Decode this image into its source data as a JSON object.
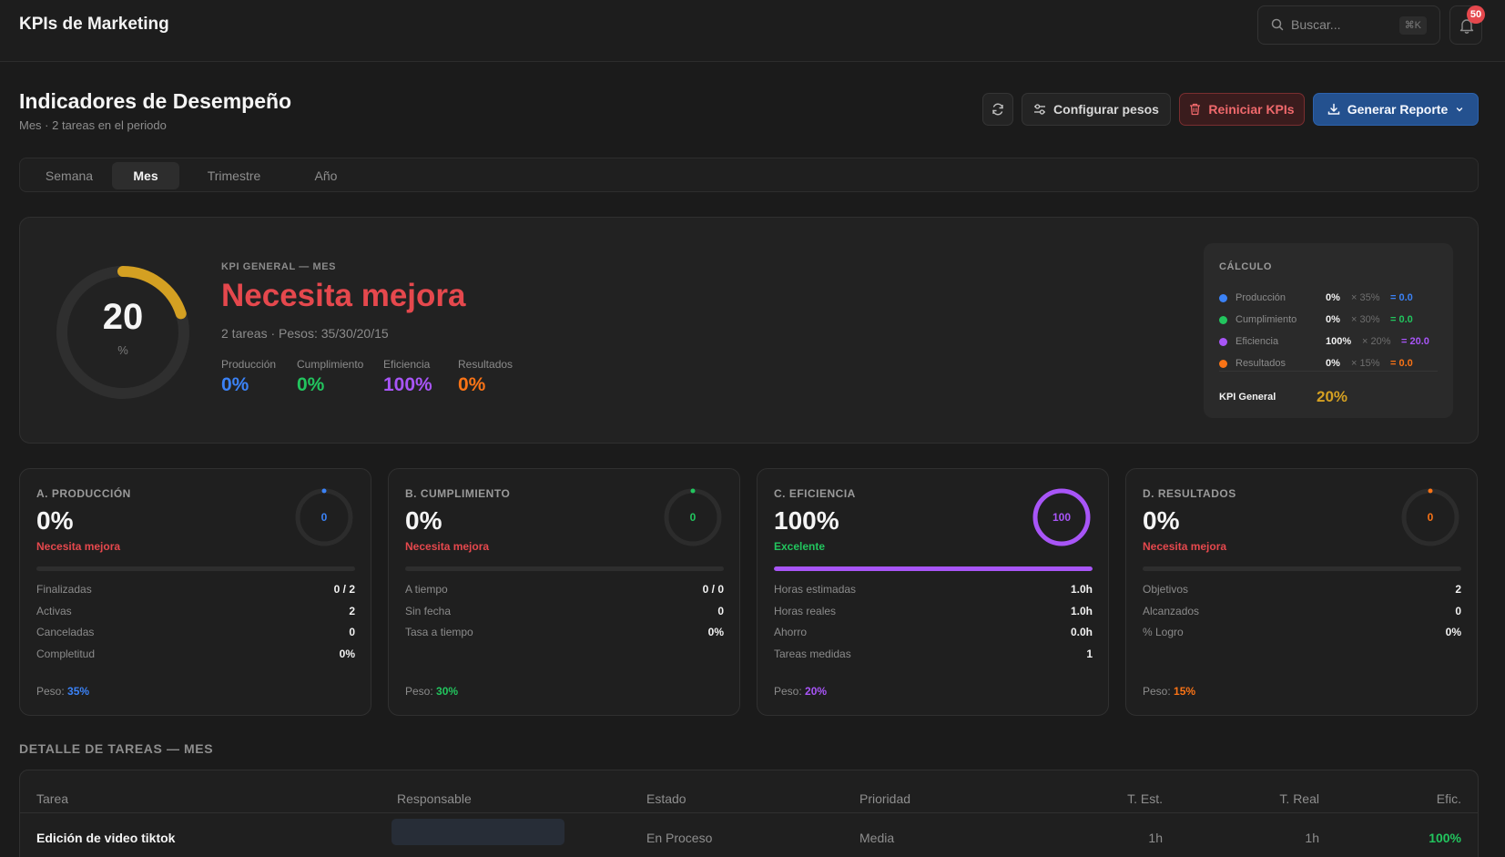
{
  "app": {
    "title": "KPIs de Marketing"
  },
  "search": {
    "placeholder": "Buscar...",
    "shortcut": "⌘K"
  },
  "notifications": {
    "count": "50"
  },
  "header": {
    "title": "Indicadores de Desempeño",
    "subtitle": "Mes · 2 tareas en el periodo",
    "config_label": "Configurar pesos",
    "reset_label": "Reiniciar KPIs",
    "report_label": "Generar Reporte"
  },
  "tabs": [
    {
      "label": "Semana",
      "active": false
    },
    {
      "label": "Mes",
      "active": true
    },
    {
      "label": "Trimestre",
      "active": false
    },
    {
      "label": "Año",
      "active": false
    }
  ],
  "kpi_general": {
    "value": "20",
    "unit": "%",
    "progress": 0.2,
    "label": "KPI GENERAL — MES",
    "status": "Necesita mejora",
    "meta": "2 tareas · Pesos: 35/30/20/15",
    "colors": {
      "gauge": "#d4a022",
      "status": "#e5484d"
    },
    "metrics": [
      {
        "label": "Producción",
        "value": "0%",
        "color": "#3b82f6"
      },
      {
        "label": "Cumplimiento",
        "value": "0%",
        "color": "#22c55e"
      },
      {
        "label": "Eficiencia",
        "value": "100%",
        "color": "#a855f7"
      },
      {
        "label": "Resultados",
        "value": "0%",
        "color": "#f97316"
      }
    ]
  },
  "calculo": {
    "title": "CÁLCULO",
    "rows": [
      {
        "label": "Producción",
        "value": "0%",
        "weight": "× 35%",
        "result": "= 0.0",
        "color": "#3b82f6"
      },
      {
        "label": "Cumplimiento",
        "value": "0%",
        "weight": "× 30%",
        "result": "= 0.0",
        "color": "#22c55e"
      },
      {
        "label": "Eficiencia",
        "value": "100%",
        "weight": "× 20%",
        "result": "= 20.0",
        "color": "#a855f7"
      },
      {
        "label": "Resultados",
        "value": "0%",
        "weight": "× 15%",
        "result": "= 0.0",
        "color": "#f97316"
      }
    ],
    "total_label": "KPI General",
    "total_value": "20%"
  },
  "cards": [
    {
      "title": "A. PRODUCCIÓN",
      "value": "0%",
      "status": "Necesita mejora",
      "status_color": "#e5484d",
      "ring_value": "0",
      "progress": 0,
      "color": "#3b82f6",
      "rows": [
        {
          "label": "Finalizadas",
          "value": "0 / 2"
        },
        {
          "label": "Activas",
          "value": "2"
        },
        {
          "label": "Canceladas",
          "value": "0"
        },
        {
          "label": "Completitud",
          "value": "0%"
        }
      ],
      "peso_label": "Peso:",
      "peso_value": "35%"
    },
    {
      "title": "B. CUMPLIMIENTO",
      "value": "0%",
      "status": "Necesita mejora",
      "status_color": "#e5484d",
      "ring_value": "0",
      "progress": 0,
      "color": "#22c55e",
      "rows": [
        {
          "label": "A tiempo",
          "value": "0 / 0"
        },
        {
          "label": "Sin fecha",
          "value": "0"
        },
        {
          "label": "Tasa a tiempo",
          "value": "0%"
        }
      ],
      "peso_label": "Peso:",
      "peso_value": "30%"
    },
    {
      "title": "C. EFICIENCIA",
      "value": "100%",
      "status": "Excelente",
      "status_color": "#22c55e",
      "ring_value": "100",
      "progress": 1,
      "color": "#a855f7",
      "rows": [
        {
          "label": "Horas estimadas",
          "value": "1.0h"
        },
        {
          "label": "Horas reales",
          "value": "1.0h"
        },
        {
          "label": "Ahorro",
          "value": "0.0h"
        },
        {
          "label": "Tareas medidas",
          "value": "1"
        }
      ],
      "peso_label": "Peso:",
      "peso_value": "20%"
    },
    {
      "title": "D. RESULTADOS",
      "value": "0%",
      "status": "Necesita mejora",
      "status_color": "#e5484d",
      "ring_value": "0",
      "progress": 0,
      "color": "#f97316",
      "rows": [
        {
          "label": "Objetivos",
          "value": "2"
        },
        {
          "label": "Alcanzados",
          "value": "0"
        },
        {
          "label": "% Logro",
          "value": "0%"
        }
      ],
      "peso_label": "Peso:",
      "peso_value": "15%"
    }
  ],
  "tasks": {
    "title": "DETALLE DE TAREAS — MES",
    "columns": [
      "Tarea",
      "Responsable",
      "Estado",
      "Prioridad",
      "T. Est.",
      "T. Real",
      "Efic."
    ],
    "rows": [
      {
        "task": "Edición de video tiktok",
        "responsable": "",
        "estado": "En Proceso",
        "prioridad": "Media",
        "t_est": "1h",
        "t_real": "1h",
        "efic": "100%",
        "efic_color": "#22c55e"
      }
    ]
  }
}
